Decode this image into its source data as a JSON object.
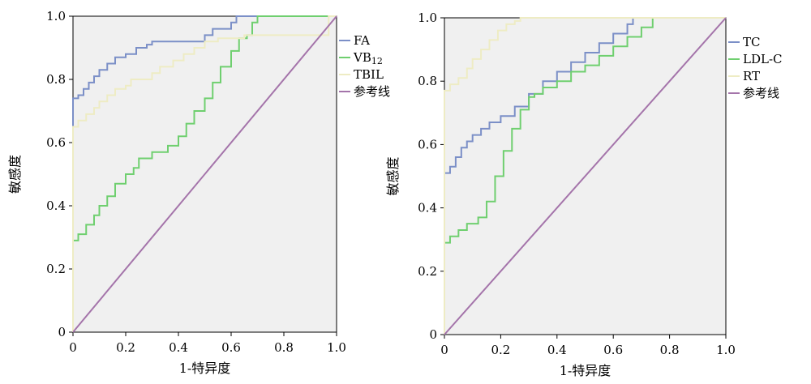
{
  "chart_data": [
    {
      "type": "line",
      "xlabel": "1-特异度",
      "ylabel": "敏感度",
      "xlim": [
        0,
        1
      ],
      "ylim": [
        0,
        1
      ],
      "x_ticks": [
        "0",
        "0.2",
        "0.4",
        "0.6",
        "0.8",
        "1.0"
      ],
      "y_ticks": [
        "0",
        "0.2",
        "0.4",
        "0.6",
        "0.8",
        "1.0"
      ],
      "grid": false,
      "legend_position": "right",
      "series": [
        {
          "name": "FA",
          "color": "#7b8fc7",
          "x": [
            0,
            0,
            0.02,
            0.04,
            0.06,
            0.08,
            0.1,
            0.13,
            0.16,
            0.2,
            0.24,
            0.28,
            0.3,
            0.35,
            0.4,
            0.45,
            0.5,
            0.53,
            0.58,
            0.6,
            0.62,
            0.65,
            0.7,
            1.0
          ],
          "y": [
            0,
            0.74,
            0.75,
            0.77,
            0.79,
            0.81,
            0.83,
            0.85,
            0.87,
            0.88,
            0.9,
            0.91,
            0.92,
            0.92,
            0.92,
            0.92,
            0.94,
            0.96,
            0.96,
            0.98,
            1.0,
            1.0,
            1.0,
            1.0
          ]
        },
        {
          "name": "VB12",
          "color": "#6fcf6f",
          "x": [
            0,
            0,
            0.02,
            0.05,
            0.08,
            0.1,
            0.13,
            0.16,
            0.2,
            0.23,
            0.25,
            0.28,
            0.3,
            0.33,
            0.36,
            0.4,
            0.43,
            0.46,
            0.5,
            0.53,
            0.56,
            0.6,
            0.63,
            0.66,
            0.68,
            0.7,
            0.72,
            1.0
          ],
          "y": [
            0,
            0.29,
            0.31,
            0.34,
            0.37,
            0.4,
            0.43,
            0.47,
            0.5,
            0.52,
            0.55,
            0.55,
            0.57,
            0.57,
            0.59,
            0.62,
            0.66,
            0.7,
            0.74,
            0.79,
            0.84,
            0.89,
            0.93,
            0.94,
            0.98,
            1.0,
            1.0,
            1.0
          ]
        },
        {
          "name": "TBIL",
          "color": "#eeecc4",
          "x": [
            0,
            0,
            0.02,
            0.05,
            0.08,
            0.1,
            0.13,
            0.16,
            0.2,
            0.22,
            0.27,
            0.3,
            0.33,
            0.38,
            0.42,
            0.46,
            0.5,
            0.55,
            0.65,
            0.7,
            0.8,
            0.95,
            0.97,
            1.0
          ],
          "y": [
            0,
            0.65,
            0.67,
            0.69,
            0.71,
            0.73,
            0.75,
            0.77,
            0.78,
            0.8,
            0.8,
            0.82,
            0.84,
            0.86,
            0.88,
            0.9,
            0.92,
            0.93,
            0.94,
            0.94,
            0.94,
            0.94,
            1.0,
            1.0
          ]
        },
        {
          "name": "参考线",
          "color": "#a474aa",
          "x": [
            0,
            1
          ],
          "y": [
            0,
            1
          ]
        }
      ]
    },
    {
      "type": "line",
      "xlabel": "1-特异度",
      "ylabel": "敏感度",
      "xlim": [
        0,
        1
      ],
      "ylim": [
        0,
        1
      ],
      "x_ticks": [
        "0",
        "0.2",
        "0.4",
        "0.6",
        "0.8",
        "1.0"
      ],
      "y_ticks": [
        "0",
        "0.2",
        "0.4",
        "0.6",
        "0.8",
        "1.0"
      ],
      "grid": false,
      "legend_position": "right",
      "series": [
        {
          "name": "TC",
          "color": "#7b8fc7",
          "x": [
            0,
            0,
            0.02,
            0.04,
            0.06,
            0.08,
            0.1,
            0.13,
            0.16,
            0.2,
            0.25,
            0.3,
            0.35,
            0.4,
            0.45,
            0.5,
            0.55,
            0.6,
            0.65,
            0.67,
            0.7,
            1.0
          ],
          "y": [
            0,
            0.51,
            0.53,
            0.56,
            0.59,
            0.61,
            0.63,
            0.65,
            0.67,
            0.69,
            0.72,
            0.76,
            0.8,
            0.83,
            0.86,
            0.89,
            0.92,
            0.95,
            0.98,
            1.0,
            1.0,
            1.0
          ],
          "note_visible": ""
        },
        {
          "name": "LDL-C",
          "color": "#6fcf6f",
          "x": [
            0,
            0,
            0.02,
            0.05,
            0.08,
            0.12,
            0.15,
            0.18,
            0.21,
            0.24,
            0.27,
            0.3,
            0.32,
            0.35,
            0.4,
            0.45,
            0.5,
            0.55,
            0.6,
            0.65,
            0.7,
            0.74,
            1.0
          ],
          "y": [
            0,
            0.29,
            0.31,
            0.33,
            0.35,
            0.37,
            0.42,
            0.5,
            0.58,
            0.65,
            0.71,
            0.75,
            0.76,
            0.78,
            0.8,
            0.83,
            0.85,
            0.88,
            0.91,
            0.94,
            0.97,
            1.0,
            1.0
          ]
        },
        {
          "name": "RT",
          "color": "#eeecc4",
          "x": [
            0,
            0,
            0.02,
            0.05,
            0.08,
            0.1,
            0.13,
            0.16,
            0.19,
            0.22,
            0.25,
            0.27,
            0.3,
            1.0
          ],
          "y": [
            0,
            0.77,
            0.79,
            0.81,
            0.84,
            0.87,
            0.9,
            0.93,
            0.96,
            0.98,
            0.99,
            1.0,
            1.0,
            1.0
          ]
        },
        {
          "name": "参考线",
          "color": "#a474aa",
          "x": [
            0,
            1
          ],
          "y": [
            0,
            1
          ]
        }
      ]
    }
  ]
}
